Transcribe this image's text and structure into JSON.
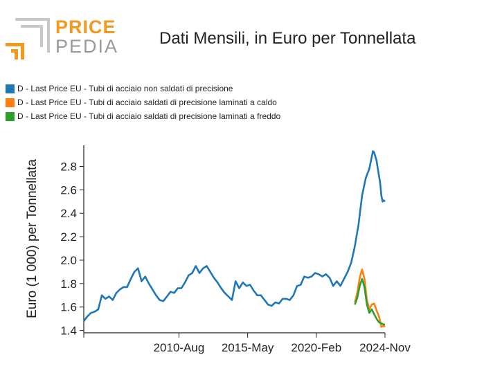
{
  "header": {
    "logo_line1": "PRICE",
    "logo_line2": "PEDIA",
    "title": "Dati Mensili, in Euro per Tonnellata"
  },
  "colors": {
    "series1": "#1f77b4",
    "series2": "#ff7f0e",
    "series3": "#2ca02c",
    "logo_orange": "#f39a1e",
    "logo_gray": "#9a9a9a"
  },
  "chart_data": {
    "type": "line",
    "title": "Dati Mensili, in Euro per Tonnellata",
    "xlabel": "",
    "ylabel": "Euro (1 000) per Tonnellata",
    "x_tick_labels": [
      "2010-Aug",
      "2015-May",
      "2020-Feb",
      "2024-Nov"
    ],
    "y_ticks": [
      "1.4",
      "1.6",
      "1.8",
      "2.0",
      "2.2",
      "2.4",
      "2.6",
      "2.8"
    ],
    "ylim": [
      1.38,
      2.98
    ],
    "xlim": [
      "2004-01",
      "2024-11"
    ],
    "legend_placement": "top-left",
    "grid": false,
    "series": [
      {
        "name": "D - Last Price EU - Tubi di acciaio non saldati di precisione",
        "points": [
          [
            "2004-01",
            1.48
          ],
          [
            "2004-04",
            1.52
          ],
          [
            "2004-07",
            1.55
          ],
          [
            "2004-10",
            1.56
          ],
          [
            "2005-01",
            1.58
          ],
          [
            "2005-04",
            1.7
          ],
          [
            "2005-07",
            1.67
          ],
          [
            "2005-10",
            1.69
          ],
          [
            "2006-01",
            1.66
          ],
          [
            "2006-04",
            1.72
          ],
          [
            "2006-07",
            1.75
          ],
          [
            "2006-10",
            1.77
          ],
          [
            "2007-01",
            1.77
          ],
          [
            "2007-04",
            1.84
          ],
          [
            "2007-07",
            1.9
          ],
          [
            "2007-10",
            1.93
          ],
          [
            "2008-01",
            1.82
          ],
          [
            "2008-04",
            1.86
          ],
          [
            "2008-07",
            1.8
          ],
          [
            "2008-10",
            1.75
          ],
          [
            "2009-01",
            1.7
          ],
          [
            "2009-04",
            1.66
          ],
          [
            "2009-07",
            1.65
          ],
          [
            "2009-10",
            1.69
          ],
          [
            "2010-01",
            1.73
          ],
          [
            "2010-04",
            1.72
          ],
          [
            "2010-07",
            1.76
          ],
          [
            "2010-10",
            1.76
          ],
          [
            "2011-01",
            1.81
          ],
          [
            "2011-04",
            1.87
          ],
          [
            "2011-07",
            1.89
          ],
          [
            "2011-10",
            1.95
          ],
          [
            "2012-01",
            1.89
          ],
          [
            "2012-04",
            1.93
          ],
          [
            "2012-07",
            1.95
          ],
          [
            "2012-10",
            1.9
          ],
          [
            "2013-01",
            1.85
          ],
          [
            "2013-04",
            1.81
          ],
          [
            "2013-07",
            1.76
          ],
          [
            "2013-10",
            1.72
          ],
          [
            "2014-01",
            1.69
          ],
          [
            "2014-04",
            1.66
          ],
          [
            "2014-07",
            1.82
          ],
          [
            "2014-10",
            1.76
          ],
          [
            "2015-01",
            1.81
          ],
          [
            "2015-04",
            1.78
          ],
          [
            "2015-07",
            1.79
          ],
          [
            "2015-10",
            1.74
          ],
          [
            "2016-01",
            1.7
          ],
          [
            "2016-04",
            1.7
          ],
          [
            "2016-07",
            1.66
          ],
          [
            "2016-10",
            1.62
          ],
          [
            "2017-01",
            1.61
          ],
          [
            "2017-04",
            1.64
          ],
          [
            "2017-07",
            1.63
          ],
          [
            "2017-10",
            1.67
          ],
          [
            "2018-01",
            1.67
          ],
          [
            "2018-04",
            1.66
          ],
          [
            "2018-07",
            1.7
          ],
          [
            "2018-10",
            1.78
          ],
          [
            "2019-01",
            1.79
          ],
          [
            "2019-04",
            1.86
          ],
          [
            "2019-07",
            1.85
          ],
          [
            "2019-10",
            1.86
          ],
          [
            "2020-01",
            1.89
          ],
          [
            "2020-04",
            1.88
          ],
          [
            "2020-07",
            1.86
          ],
          [
            "2020-10",
            1.88
          ],
          [
            "2021-01",
            1.85
          ],
          [
            "2021-04",
            1.78
          ],
          [
            "2021-07",
            1.82
          ],
          [
            "2021-10",
            1.78
          ],
          [
            "2022-01",
            1.84
          ],
          [
            "2022-04",
            1.9
          ],
          [
            "2022-07",
            1.98
          ],
          [
            "2022-10",
            2.12
          ],
          [
            "2023-01",
            2.3
          ],
          [
            "2023-04",
            2.55
          ],
          [
            "2023-07",
            2.7
          ],
          [
            "2023-10",
            2.78
          ],
          [
            "2024-01",
            2.93
          ],
          [
            "2024-02",
            2.92
          ],
          [
            "2024-04",
            2.85
          ],
          [
            "2024-06",
            2.72
          ],
          [
            "2024-07",
            2.66
          ],
          [
            "2024-08",
            2.55
          ],
          [
            "2024-09",
            2.5
          ],
          [
            "2024-10",
            2.51
          ],
          [
            "2024-11",
            2.5
          ]
        ]
      },
      {
        "name": "D - Last Price EU - Tubi di acciaio saldati di precisione laminati a caldo",
        "points": [
          [
            "2022-10",
            1.64
          ],
          [
            "2022-12",
            1.72
          ],
          [
            "2023-02",
            1.85
          ],
          [
            "2023-04",
            1.92
          ],
          [
            "2023-06",
            1.84
          ],
          [
            "2023-08",
            1.66
          ],
          [
            "2023-10",
            1.58
          ],
          [
            "2023-12",
            1.62
          ],
          [
            "2024-02",
            1.63
          ],
          [
            "2024-04",
            1.57
          ],
          [
            "2024-06",
            1.52
          ],
          [
            "2024-08",
            1.43
          ],
          [
            "2024-10",
            1.44
          ],
          [
            "2024-11",
            1.43
          ]
        ]
      },
      {
        "name": "D - Last Price EU - Tubi di acciaio saldati di precisione laminati a freddo",
        "points": [
          [
            "2022-10",
            1.62
          ],
          [
            "2022-12",
            1.68
          ],
          [
            "2023-02",
            1.78
          ],
          [
            "2023-04",
            1.84
          ],
          [
            "2023-06",
            1.77
          ],
          [
            "2023-08",
            1.62
          ],
          [
            "2023-10",
            1.55
          ],
          [
            "2023-12",
            1.58
          ],
          [
            "2024-02",
            1.54
          ],
          [
            "2024-04",
            1.5
          ],
          [
            "2024-06",
            1.47
          ],
          [
            "2024-08",
            1.46
          ],
          [
            "2024-10",
            1.45
          ],
          [
            "2024-11",
            1.45
          ]
        ]
      }
    ]
  }
}
